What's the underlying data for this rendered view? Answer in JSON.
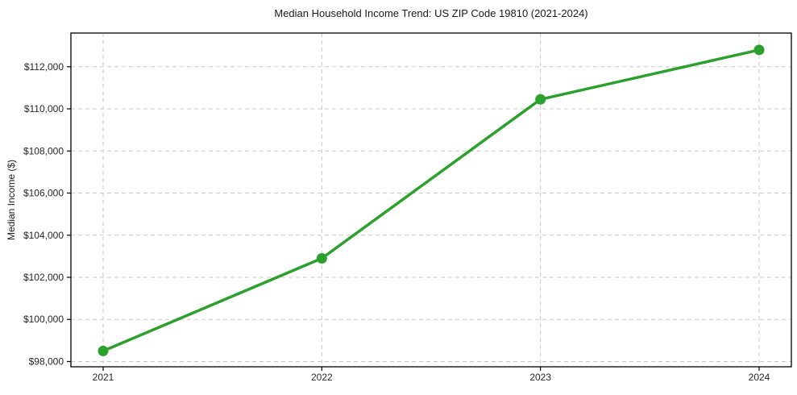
{
  "chart_data": {
    "type": "line",
    "title": "Median Household Income Trend: US ZIP Code 19810 (2021-2024)",
    "xlabel": "",
    "ylabel": "Median Income ($)",
    "categories": [
      "2021",
      "2022",
      "2023",
      "2024"
    ],
    "series": [
      {
        "name": "Median Household Income",
        "values": [
          98500,
          102900,
          110450,
          112800
        ]
      }
    ],
    "ylim": [
      97750,
      113600
    ],
    "yticks": [
      {
        "value": 98000,
        "label": "$98,000"
      },
      {
        "value": 100000,
        "label": "$100,000"
      },
      {
        "value": 102000,
        "label": "$102,000"
      },
      {
        "value": 104000,
        "label": "$104,000"
      },
      {
        "value": 106000,
        "label": "$106,000"
      },
      {
        "value": 108000,
        "label": "$108,000"
      },
      {
        "value": 110000,
        "label": "$110,000"
      },
      {
        "value": 112000,
        "label": "$112,000"
      }
    ],
    "grid": "dashed-both-axes",
    "legend_position": "none",
    "marker": "circle",
    "colors": {
      "line": "#2ca02c",
      "marker": "#2ca02c",
      "grid": "#c9c9c9",
      "frame": "#000000",
      "text": "#1a1a1a",
      "background": "#ffffff"
    }
  }
}
